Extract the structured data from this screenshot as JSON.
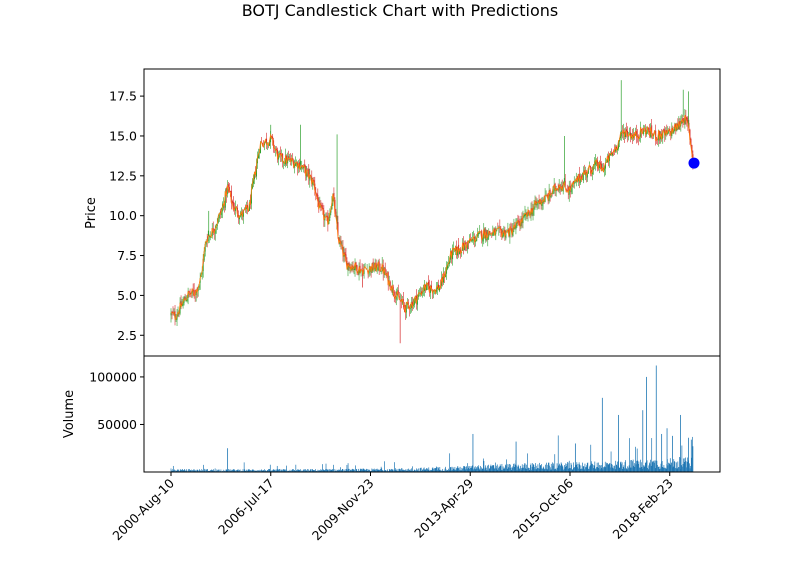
{
  "chart_data": {
    "type": "candlestick",
    "title": "BOTJ Candlestick Chart with Predictions",
    "price_panel": {
      "ylabel": "Price",
      "ylim": [
        1.2,
        19.2
      ],
      "yticks": [
        2.5,
        5.0,
        7.5,
        10.0,
        12.5,
        15.0,
        17.5
      ],
      "ytick_labels": [
        "2.5",
        "5.0",
        "7.5",
        "10.0",
        "12.5",
        "15.0",
        "17.5"
      ],
      "up_color": "#2ca02c",
      "down_color": "#d62728",
      "close_line_color": "#ff7f0e",
      "prediction": {
        "index": 0.97,
        "value": 13.3,
        "color": "#0000ff"
      }
    },
    "volume_panel": {
      "ylabel": "Volume",
      "ylim": [
        0,
        122000
      ],
      "yticks": [
        50000,
        100000
      ],
      "ytick_labels": [
        "50000",
        "100000"
      ],
      "bar_color": "#1f77b4"
    },
    "x_axis": {
      "tick_positions": [
        0.0,
        0.185,
        0.37,
        0.555,
        0.74,
        0.925
      ],
      "tick_labels": [
        "2000-Aug-10",
        "2006-Jul-17",
        "2009-Nov-23",
        "2013-Apr-29",
        "2015-Oct-06",
        "2018-Feb-23"
      ]
    },
    "price_anchors": [
      [
        0.0,
        3.8
      ],
      [
        0.008,
        3.7
      ],
      [
        0.02,
        4.4
      ],
      [
        0.03,
        5.0
      ],
      [
        0.045,
        5.2
      ],
      [
        0.055,
        6.0
      ],
      [
        0.065,
        8.5
      ],
      [
        0.08,
        9.2
      ],
      [
        0.095,
        10.4
      ],
      [
        0.105,
        11.8
      ],
      [
        0.115,
        10.6
      ],
      [
        0.13,
        10.0
      ],
      [
        0.145,
        10.5
      ],
      [
        0.165,
        14.5
      ],
      [
        0.185,
        14.8
      ],
      [
        0.2,
        13.6
      ],
      [
        0.225,
        13.4
      ],
      [
        0.24,
        13.2
      ],
      [
        0.255,
        12.5
      ],
      [
        0.265,
        12.0
      ],
      [
        0.275,
        10.5
      ],
      [
        0.29,
        9.5
      ],
      [
        0.3,
        11.3
      ],
      [
        0.31,
        8.6
      ],
      [
        0.325,
        7.0
      ],
      [
        0.34,
        6.8
      ],
      [
        0.355,
        6.6
      ],
      [
        0.37,
        6.7
      ],
      [
        0.39,
        6.8
      ],
      [
        0.41,
        5.5
      ],
      [
        0.42,
        4.9
      ],
      [
        0.435,
        4.2
      ],
      [
        0.45,
        4.6
      ],
      [
        0.47,
        5.5
      ],
      [
        0.49,
        5.4
      ],
      [
        0.5,
        5.6
      ],
      [
        0.52,
        7.6
      ],
      [
        0.54,
        8.0
      ],
      [
        0.56,
        8.5
      ],
      [
        0.58,
        8.9
      ],
      [
        0.6,
        8.9
      ],
      [
        0.63,
        9.0
      ],
      [
        0.66,
        10.0
      ],
      [
        0.68,
        10.8
      ],
      [
        0.7,
        11.2
      ],
      [
        0.72,
        12.0
      ],
      [
        0.74,
        11.6
      ],
      [
        0.76,
        12.5
      ],
      [
        0.79,
        13.2
      ],
      [
        0.8,
        12.9
      ],
      [
        0.82,
        14.0
      ],
      [
        0.84,
        15.3
      ],
      [
        0.86,
        15.0
      ],
      [
        0.88,
        15.4
      ],
      [
        0.9,
        15.0
      ],
      [
        0.92,
        15.1
      ],
      [
        0.94,
        15.6
      ],
      [
        0.95,
        16.2
      ],
      [
        0.96,
        15.5
      ],
      [
        0.968,
        13.5
      ]
    ],
    "price_spikes": [
      [
        0.425,
        2.0
      ],
      [
        0.308,
        15.1
      ],
      [
        0.835,
        18.5
      ],
      [
        0.95,
        17.9
      ],
      [
        0.06,
        7.0
      ],
      [
        0.07,
        10.3
      ],
      [
        0.185,
        15.7
      ],
      [
        0.24,
        15.7
      ],
      [
        0.355,
        5.5
      ],
      [
        0.73,
        15.0
      ],
      [
        0.96,
        17.8
      ]
    ],
    "volume_profile": [
      [
        0.0,
        2500
      ],
      [
        0.3,
        2500
      ],
      [
        0.45,
        3500
      ],
      [
        0.55,
        5500
      ],
      [
        0.65,
        7500
      ],
      [
        0.75,
        8500
      ],
      [
        0.8,
        9500
      ],
      [
        0.85,
        10500
      ],
      [
        0.9,
        11500
      ],
      [
        0.97,
        12500
      ]
    ],
    "volume_spikes": [
      [
        0.105,
        25000
      ],
      [
        0.56,
        40000
      ],
      [
        0.64,
        32000
      ],
      [
        0.75,
        30000
      ],
      [
        0.8,
        78000
      ],
      [
        0.83,
        60000
      ],
      [
        0.875,
        65000
      ],
      [
        0.882,
        100000
      ],
      [
        0.9,
        112000
      ],
      [
        0.91,
        40000
      ],
      [
        0.92,
        46000
      ],
      [
        0.93,
        38000
      ],
      [
        0.945,
        60000
      ],
      [
        0.96,
        36000
      ],
      [
        0.965,
        34000
      ]
    ]
  }
}
